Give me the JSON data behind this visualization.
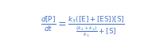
{
  "equation": "$\\frac{d[\\mathrm{P}]}{dt} = \\frac{k_3([\\mathrm{E}]+[\\mathrm{ES}])[\\mathrm{S}]}{\\frac{(k_2+k_3)}{k_1}+[\\mathrm{S}]}$",
  "text_color": "#4472C4",
  "bg_color": "#ffffff",
  "fontsize": 9,
  "fig_width": 2.07,
  "fig_height": 0.68,
  "dpi": 100
}
